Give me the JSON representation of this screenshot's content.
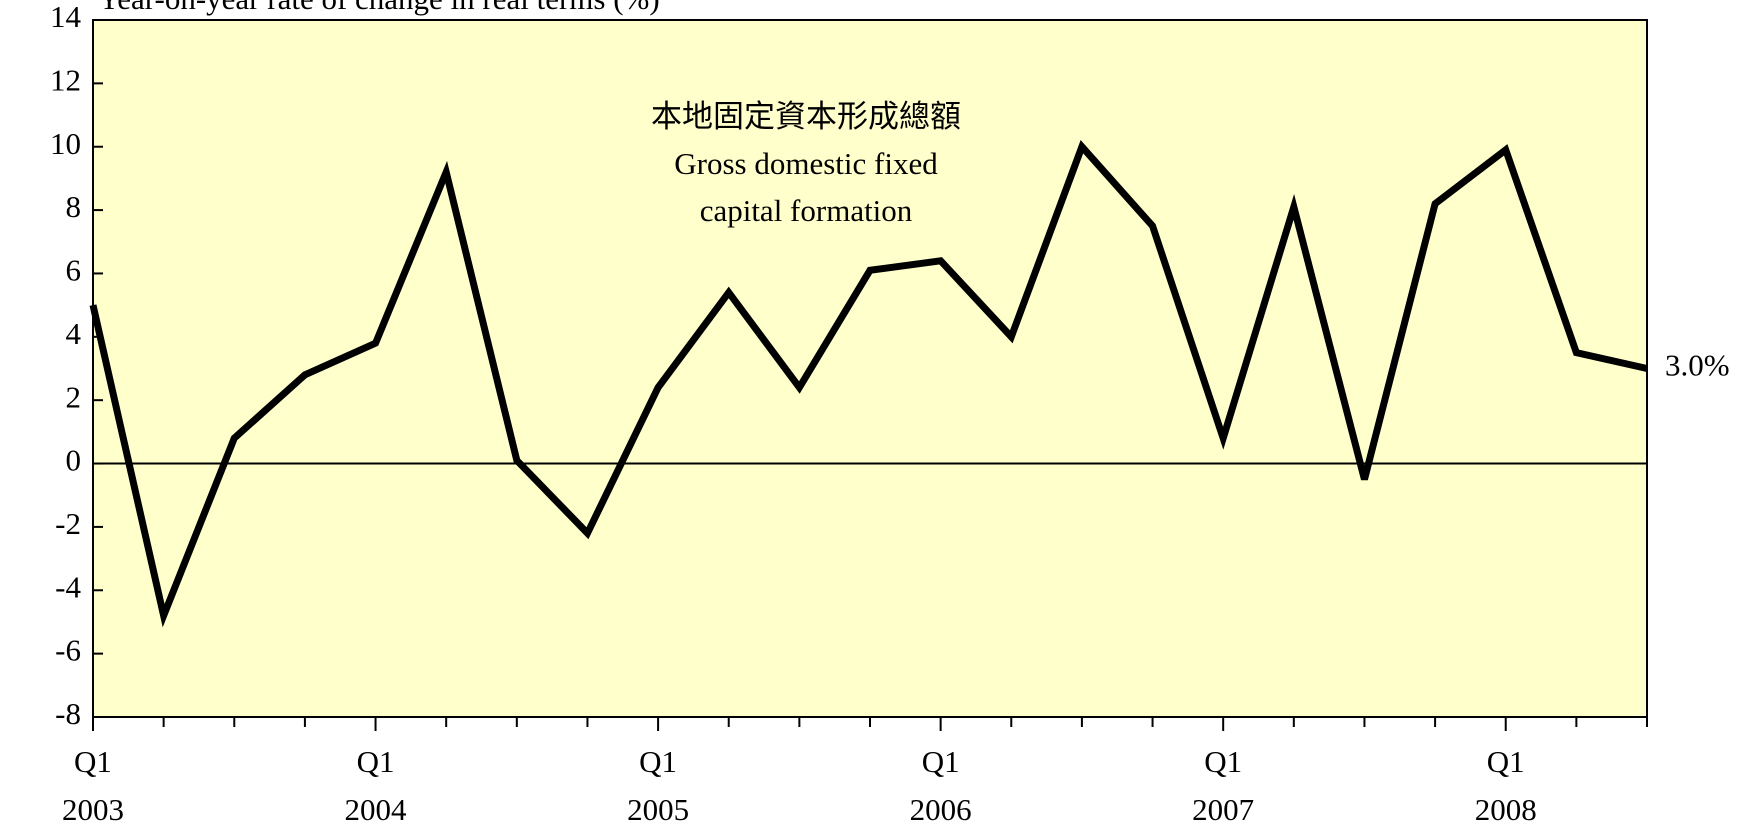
{
  "chart_data": {
    "type": "line",
    "y_label": "Year-on-year rate of change in real terms (%)",
    "annotation": [
      "本地固定資本形成總額",
      "Gross domestic fixed",
      "capital formation"
    ],
    "categories": [
      "Q1 2003",
      null,
      null,
      null,
      "Q1 2004",
      null,
      null,
      null,
      "Q1 2005",
      null,
      null,
      null,
      "Q1 2006",
      null,
      null,
      null,
      "Q1 2007",
      null,
      null,
      null,
      "Q1 2008",
      null,
      null
    ],
    "series": [
      {
        "color": "#000000",
        "values": [
          5.0,
          -4.8,
          0.8,
          2.8,
          3.8,
          9.2,
          0.1,
          -2.2,
          2.4,
          5.4,
          2.4,
          6.1,
          6.4,
          4.0,
          10.0,
          7.5,
          0.8,
          8.1,
          -0.5,
          8.2,
          9.9,
          3.5,
          3.0
        ],
        "value_labels": [
          null,
          null,
          null,
          null,
          null,
          null,
          null,
          null,
          null,
          null,
          null,
          null,
          null,
          null,
          null,
          null,
          null,
          null,
          null,
          null,
          null,
          null,
          "3.0%"
        ]
      }
    ],
    "ylim": [
      -8,
      14
    ],
    "yticks": [
      -8,
      -6,
      -4,
      -2,
      0,
      2,
      4,
      6,
      8,
      10,
      12,
      14
    ],
    "background": "#ffffcc"
  }
}
